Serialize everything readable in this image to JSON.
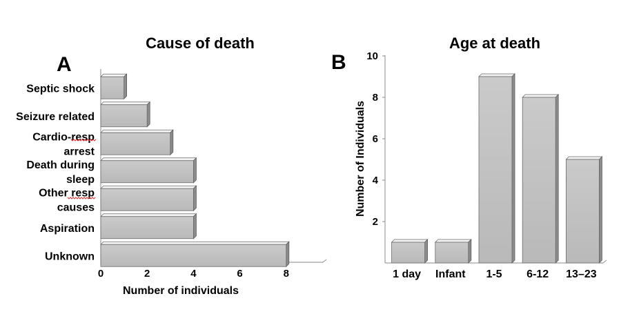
{
  "chart_data": [
    {
      "type": "bar",
      "orientation": "horizontal",
      "panel_label": "A",
      "title": "Cause of death",
      "xlabel": "Number of individuals",
      "ylabel": "",
      "xlim": [
        0,
        10
      ],
      "x_ticks": [
        "0",
        "2",
        "4",
        "6",
        "8"
      ],
      "categories": [
        [
          "Septic shock"
        ],
        [
          "Seizure related"
        ],
        [
          "Cardio-resp",
          "arrest"
        ],
        [
          "Death during",
          "sleep"
        ],
        [
          "Other resp",
          "causes"
        ],
        [
          "Aspiration"
        ],
        [
          "Unknown"
        ]
      ],
      "values": [
        1,
        2,
        3,
        4,
        4,
        4,
        8
      ],
      "bar_color": "#c0c0c0",
      "grid": false,
      "legend": "none"
    },
    {
      "type": "bar",
      "orientation": "vertical",
      "panel_label": "B",
      "title": "Age at death",
      "xlabel": "",
      "ylabel": "Number of Individuals",
      "ylim": [
        0,
        10
      ],
      "y_ticks": [
        "2",
        "4",
        "6",
        "8",
        "10"
      ],
      "categories": [
        "1 day",
        "Infant",
        "1-5",
        "6-12",
        "13–23"
      ],
      "values": [
        1,
        1,
        9,
        8,
        5
      ],
      "bar_color": "#c0c0c0",
      "grid": false,
      "legend": "none"
    }
  ]
}
